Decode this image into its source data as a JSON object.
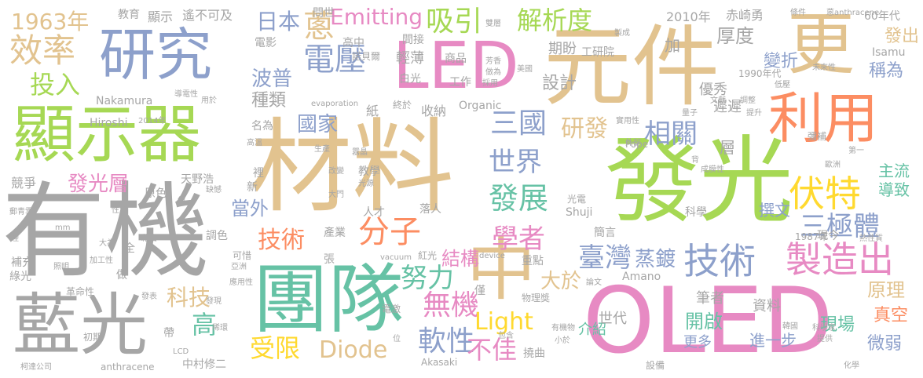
{
  "palette": {
    "gray": "#a6a6a6",
    "tan": "#e2c38f",
    "blue": "#8da0cb",
    "green": "#a6d854",
    "orange": "#fc8d62",
    "pink": "#e78ac3",
    "yellow": "#ffd92f",
    "teal": "#66c2a5"
  },
  "words": [
    {
      "text": "有機",
      "color": "#a6a6a6"
    },
    {
      "text": "材料",
      "color": "#e2c38f"
    },
    {
      "text": "發光",
      "color": "#a6d854"
    },
    {
      "text": "元件",
      "color": "#e2c38f"
    },
    {
      "text": "OLED",
      "color": "#e78ac3"
    },
    {
      "text": "顯示器",
      "color": "#a6d854"
    },
    {
      "text": "團隊",
      "color": "#66c2a5"
    },
    {
      "text": "研究",
      "color": "#8da0cb"
    },
    {
      "text": "藍光",
      "color": "#a6a6a6"
    },
    {
      "text": "更",
      "color": "#e2c38f"
    },
    {
      "text": "LED",
      "color": "#e78ac3"
    },
    {
      "text": "利用",
      "color": "#fc8d62"
    },
    {
      "text": "中",
      "color": "#e2c38f"
    },
    {
      "text": "製造出",
      "color": "#e78ac3"
    },
    {
      "text": "技術",
      "color": "#8da0cb"
    },
    {
      "text": "伏特",
      "color": "#ffd92f"
    },
    {
      "text": "三極體",
      "color": "#8da0cb"
    },
    {
      "text": "電壓",
      "color": "#8da0cb"
    },
    {
      "text": "效率",
      "color": "#e2c38f"
    },
    {
      "text": "發展",
      "color": "#66c2a5"
    },
    {
      "text": "分子",
      "color": "#fc8d62"
    },
    {
      "text": "蔥",
      "color": "#e2c38f"
    },
    {
      "text": "Emitting",
      "color": "#e78ac3"
    },
    {
      "text": "臺灣",
      "color": "#8da0cb"
    },
    {
      "text": "三國",
      "color": "#8da0cb"
    },
    {
      "text": "世界",
      "color": "#8da0cb"
    },
    {
      "text": "學者",
      "color": "#e78ac3"
    },
    {
      "text": "吸引",
      "color": "#a6d854"
    },
    {
      "text": "解析度",
      "color": "#a6d854"
    },
    {
      "text": "日本",
      "color": "#8da0cb"
    },
    {
      "text": "投入",
      "color": "#a6d854"
    },
    {
      "text": "1963年",
      "color": "#e2c38f"
    },
    {
      "text": "軟性",
      "color": "#8da0cb"
    },
    {
      "text": "無機",
      "color": "#e78ac3"
    },
    {
      "text": "努力",
      "color": "#66c2a5"
    },
    {
      "text": "結構",
      "color": "#e78ac3"
    },
    {
      "text": "相關",
      "color": "#8da0cb"
    },
    {
      "text": "研發",
      "color": "#e2c38f"
    },
    {
      "text": "技術",
      "color": "#fc8d62"
    },
    {
      "text": "受限",
      "color": "#ffd92f"
    },
    {
      "text": "Diode",
      "color": "#e2c38f"
    },
    {
      "text": "Light",
      "color": "#ffd92f"
    },
    {
      "text": "不佳",
      "color": "#e78ac3"
    },
    {
      "text": "大於",
      "color": "#e2c38f"
    },
    {
      "text": "蒸鍍",
      "color": "#8da0cb"
    },
    {
      "text": "高",
      "color": "#66c2a5"
    },
    {
      "text": "科技",
      "color": "#e2c38f"
    },
    {
      "text": "發光層",
      "color": "#e78ac3"
    },
    {
      "text": "當外",
      "color": "#8da0cb"
    },
    {
      "text": "國家",
      "color": "#8da0cb"
    },
    {
      "text": "波普",
      "color": "#8da0cb"
    },
    {
      "text": "種類",
      "color": "#a6a6a6"
    },
    {
      "text": "設計",
      "color": "#a6a6a6"
    },
    {
      "text": "厚度",
      "color": "#a6a6a6"
    },
    {
      "text": "發出",
      "color": "#e2c38f"
    },
    {
      "text": "變折",
      "color": "#8da0cb"
    },
    {
      "text": "稱為",
      "color": "#8da0cb"
    },
    {
      "text": "原理",
      "color": "#e2c38f"
    },
    {
      "text": "真空",
      "color": "#fc8d62"
    },
    {
      "text": "微弱",
      "color": "#8da0cb"
    },
    {
      "text": "開啟",
      "color": "#66c2a5"
    },
    {
      "text": "現場",
      "color": "#66c2a5"
    },
    {
      "text": "撰文",
      "color": "#8da0cb"
    },
    {
      "text": "主流",
      "color": "#66c2a5"
    },
    {
      "text": "導致",
      "color": "#66c2a5"
    },
    {
      "text": "更多",
      "color": "#8da0cb"
    },
    {
      "text": "進一步",
      "color": "#8da0cb"
    },
    {
      "text": "資料",
      "color": "#a6a6a6"
    },
    {
      "text": "筆者",
      "color": "#a6a6a6"
    },
    {
      "text": "介紹",
      "color": "#66c2a5"
    },
    {
      "text": "世代",
      "color": "#a6a6a6"
    },
    {
      "text": "優秀",
      "color": "#a6a6a6"
    },
    {
      "text": "遲遲",
      "color": "#a6a6a6"
    },
    {
      "text": "層",
      "color": "#a6a6a6"
    },
    {
      "text": "加",
      "color": "#a6a6a6"
    },
    {
      "text": "期盼",
      "color": "#a6a6a6"
    },
    {
      "text": "工研院",
      "color": "#a6a6a6"
    },
    {
      "text": "赤崎勇",
      "color": "#a6a6a6"
    },
    {
      "text": "2010年",
      "color": "#a6a6a6"
    },
    {
      "text": "60年代",
      "color": "#a6a6a6"
    },
    {
      "text": "Isamu",
      "color": "#a6a6a6"
    },
    {
      "text": "1990年代",
      "color": "#a6a6a6"
    },
    {
      "text": "教育",
      "color": "#a6a6a6"
    },
    {
      "text": "顯示",
      "color": "#a6a6a6"
    },
    {
      "text": "遙不可及",
      "color": "#a6a6a6"
    },
    {
      "text": "問世",
      "color": "#a6a6a6"
    },
    {
      "text": "電影",
      "color": "#a6a6a6"
    },
    {
      "text": "高中",
      "color": "#a6a6a6"
    },
    {
      "text": "間接",
      "color": "#a6a6a6"
    },
    {
      "text": "諾貝爾",
      "color": "#a6a6a6"
    },
    {
      "text": "輕薄",
      "color": "#a6a6a6"
    },
    {
      "text": "白光",
      "color": "#a6a6a6"
    },
    {
      "text": "工作",
      "color": "#a6a6a6"
    },
    {
      "text": "商品",
      "color": "#a6a6a6"
    },
    {
      "text": "芳香",
      "color": "#a6a6a6"
    },
    {
      "text": "做為",
      "color": "#a6a6a6"
    },
    {
      "text": "採用",
      "color": "#a6a6a6"
    },
    {
      "text": "美國",
      "color": "#a6a6a6"
    },
    {
      "text": "Organic",
      "color": "#a6a6a6"
    },
    {
      "text": "收納",
      "color": "#a6a6a6"
    },
    {
      "text": "紙",
      "color": "#a6a6a6"
    },
    {
      "text": "名為",
      "color": "#a6a6a6"
    },
    {
      "text": "Nakamura",
      "color": "#a6a6a6"
    },
    {
      "text": "Hiroshi",
      "color": "#a6a6a6"
    },
    {
      "text": "2014年",
      "color": "#a6a6a6"
    },
    {
      "text": "evaporation",
      "color": "#a6a6a6"
    },
    {
      "text": "終於",
      "color": "#a6a6a6"
    },
    {
      "text": "用於",
      "color": "#a6a6a6"
    },
    {
      "text": "導電性",
      "color": "#a6a6a6"
    },
    {
      "text": "競爭",
      "color": "#a6a6a6"
    },
    {
      "text": "天野浩",
      "color": "#a6a6a6"
    },
    {
      "text": "原色",
      "color": "#a6a6a6"
    },
    {
      "text": "新",
      "color": "#a6a6a6"
    },
    {
      "text": "缺憾",
      "color": "#a6a6a6"
    },
    {
      "text": "裡",
      "color": "#a6a6a6"
    },
    {
      "text": "高溫",
      "color": "#a6a6a6"
    },
    {
      "text": "生產",
      "color": "#a6a6a6"
    },
    {
      "text": "教學",
      "color": "#a6a6a6"
    },
    {
      "text": "光源",
      "color": "#a6a6a6"
    },
    {
      "text": "人才",
      "color": "#a6a6a6"
    },
    {
      "text": "落人",
      "color": "#a6a6a6"
    },
    {
      "text": "光電",
      "color": "#a6a6a6"
    },
    {
      "text": "Shuji",
      "color": "#a6a6a6"
    },
    {
      "text": "簡言",
      "color": "#a6a6a6"
    },
    {
      "text": "科學",
      "color": "#a6a6a6"
    },
    {
      "text": "現今",
      "color": "#a6a6a6"
    },
    {
      "text": "1987年",
      "color": "#a6a6a6"
    },
    {
      "text": "熱性質",
      "color": "#a6a6a6"
    },
    {
      "text": "郵青雲",
      "color": "#a6a6a6"
    },
    {
      "text": "補充",
      "color": "#a6a6a6"
    },
    {
      "text": "綠光",
      "color": "#a6a6a6"
    },
    {
      "text": "照明",
      "color": "#a6a6a6"
    },
    {
      "text": "全",
      "color": "#a6a6a6"
    },
    {
      "text": "做",
      "color": "#a6a6a6"
    },
    {
      "text": "調色",
      "color": "#a6a6a6"
    },
    {
      "text": "產業",
      "color": "#a6a6a6"
    },
    {
      "text": "張",
      "color": "#a6a6a6"
    },
    {
      "text": "紅光",
      "color": "#a6a6a6"
    },
    {
      "text": "重點",
      "color": "#a6a6a6"
    },
    {
      "text": "僅",
      "color": "#a6a6a6"
    },
    {
      "text": "物理獎",
      "color": "#a6a6a6"
    },
    {
      "text": "Amano",
      "color": "#a6a6a6"
    },
    {
      "text": "帶",
      "color": "#a6a6a6"
    },
    {
      "text": "電激",
      "color": "#a6a6a6"
    },
    {
      "text": "位",
      "color": "#a6a6a6"
    },
    {
      "text": "Akasaki",
      "color": "#a6a6a6"
    },
    {
      "text": "撓曲",
      "color": "#a6a6a6"
    },
    {
      "text": "中村修二",
      "color": "#a6a6a6"
    },
    {
      "text": "初期",
      "color": "#a6a6a6"
    },
    {
      "text": "LCD",
      "color": "#a6a6a6"
    },
    {
      "text": "anthracene",
      "color": "#a6a6a6"
    },
    {
      "text": "柯達公司",
      "color": "#a6a6a6"
    },
    {
      "text": "設備",
      "color": "#a6a6a6"
    },
    {
      "text": "化學",
      "color": "#a6a6a6"
    },
    {
      "text": "提供",
      "color": "#a6a6a6"
    },
    {
      "text": "科學家",
      "color": "#a6a6a6"
    },
    {
      "text": "韓國",
      "color": "#a6a6a6"
    },
    {
      "text": "有機物",
      "color": "#a6a6a6"
    },
    {
      "text": "小於",
      "color": "#a6a6a6"
    },
    {
      "text": "包含",
      "color": "#a6a6a6"
    },
    {
      "text": "論文",
      "color": "#a6a6a6"
    },
    {
      "text": "發現",
      "color": "#a6a6a6"
    },
    {
      "text": "稀環",
      "color": "#a6a6a6"
    },
    {
      "text": "發表",
      "color": "#a6a6a6"
    },
    {
      "text": "革命性",
      "color": "#a6a6a6"
    },
    {
      "text": "應用性",
      "color": "#a6a6a6"
    },
    {
      "text": "可惜",
      "color": "#a6a6a6"
    },
    {
      "text": "亞洲",
      "color": "#a6a6a6"
    },
    {
      "text": "加工性",
      "color": "#a6a6a6"
    },
    {
      "text": "大為",
      "color": "#a6a6a6"
    },
    {
      "text": "藉由",
      "color": "#a6a6a6"
    },
    {
      "text": "mm",
      "color": "#a6a6a6"
    },
    {
      "text": "煙",
      "color": "#a6a6a6"
    },
    {
      "text": "性質",
      "color": "#a6a6a6"
    },
    {
      "text": "約",
      "color": "#a6a6a6"
    },
    {
      "text": "大門",
      "color": "#a6a6a6"
    },
    {
      "text": "vacuum",
      "color": "#a6a6a6"
    },
    {
      "text": "device",
      "color": "#a6a6a6"
    },
    {
      "text": "改變",
      "color": "#a6a6a6"
    },
    {
      "text": "囂晶",
      "color": "#a6a6a6"
    },
    {
      "text": "成膜性",
      "color": "#a6a6a6"
    },
    {
      "text": "背",
      "color": "#a6a6a6"
    },
    {
      "text": "Pope",
      "color": "#a6a6a6"
    },
    {
      "text": "實用性",
      "color": "#a6a6a6"
    },
    {
      "text": "外部",
      "color": "#a6a6a6"
    },
    {
      "text": "量子",
      "color": "#a6a6a6"
    },
    {
      "text": "文獻",
      "color": "#a6a6a6"
    },
    {
      "text": "調整",
      "color": "#a6a6a6"
    },
    {
      "text": "提升",
      "color": "#a6a6a6"
    },
    {
      "text": "第一",
      "color": "#a6a6a6"
    },
    {
      "text": "彌補",
      "color": "#a6a6a6"
    },
    {
      "text": "歐洲",
      "color": "#a6a6a6"
    },
    {
      "text": "低壓",
      "color": "#a6a6a6"
    },
    {
      "text": "未來性",
      "color": "#a6a6a6"
    },
    {
      "text": "蒽anthracene",
      "color": "#a6a6a6"
    },
    {
      "text": "條件",
      "color": "#a6a6a6"
    },
    {
      "text": "製成",
      "color": "#a6a6a6"
    },
    {
      "text": "雙層",
      "color": "#a6a6a6"
    }
  ]
}
